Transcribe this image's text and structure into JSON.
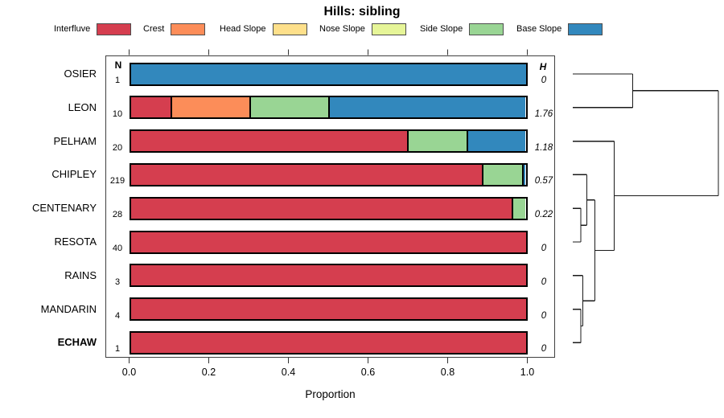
{
  "title": "Hills: sibling",
  "columns": {
    "n_header": "N",
    "h_header": "H"
  },
  "axis": {
    "label": "Proportion",
    "ticks": [
      "0.0",
      "0.2",
      "0.4",
      "0.6",
      "0.8",
      "1.0"
    ],
    "range": [
      0,
      1
    ]
  },
  "legend": [
    {
      "label": "Interfluve",
      "color": "#d53e4f"
    },
    {
      "label": "Crest",
      "color": "#fc8d59"
    },
    {
      "label": "Head Slope",
      "color": "#fee08b"
    },
    {
      "label": "Nose Slope",
      "color": "#e6f598"
    },
    {
      "label": "Side Slope",
      "color": "#99d594"
    },
    {
      "label": "Base Slope",
      "color": "#3288bd"
    }
  ],
  "rows": [
    {
      "label": "OSIER",
      "n": "1",
      "h": "0",
      "bold": false,
      "segments": [
        [
          "Base Slope",
          1.0
        ]
      ]
    },
    {
      "label": "LEON",
      "n": "10",
      "h": "1.76",
      "bold": false,
      "segments": [
        [
          "Interfluve",
          0.1
        ],
        [
          "Crest",
          0.2
        ],
        [
          "Side Slope",
          0.2
        ],
        [
          "Base Slope",
          0.5
        ]
      ]
    },
    {
      "label": "PELHAM",
      "n": "20",
      "h": "1.18",
      "bold": false,
      "segments": [
        [
          "Interfluve",
          0.7
        ],
        [
          "Side Slope",
          0.15
        ],
        [
          "Base Slope",
          0.15
        ]
      ]
    },
    {
      "label": "CHIPLEY",
      "n": "219",
      "h": "0.57",
      "bold": false,
      "segments": [
        [
          "Interfluve",
          0.89
        ],
        [
          "Side Slope",
          0.1
        ],
        [
          "Base Slope",
          0.01
        ]
      ]
    },
    {
      "label": "CENTENARY",
      "n": "28",
      "h": "0.22",
      "bold": false,
      "segments": [
        [
          "Interfluve",
          0.964
        ],
        [
          "Side Slope",
          0.036
        ]
      ]
    },
    {
      "label": "RESOTA",
      "n": "40",
      "h": "0",
      "bold": false,
      "segments": [
        [
          "Interfluve",
          1.0
        ]
      ]
    },
    {
      "label": "RAINS",
      "n": "3",
      "h": "0",
      "bold": false,
      "segments": [
        [
          "Interfluve",
          1.0
        ]
      ]
    },
    {
      "label": "MANDARIN",
      "n": "4",
      "h": "0",
      "bold": false,
      "segments": [
        [
          "Interfluve",
          1.0
        ]
      ]
    },
    {
      "label": "ECHAW",
      "n": "1",
      "h": "0",
      "bold": true,
      "segments": [
        [
          "Interfluve",
          1.0
        ]
      ]
    }
  ],
  "dendrogram": {
    "merges": [
      {
        "a": "L4",
        "b": "L5",
        "x": 722,
        "id": "M0"
      },
      {
        "a": "L3",
        "b": "M0",
        "x": 729.5,
        "id": "M1"
      },
      {
        "a": "L7",
        "b": "L8",
        "x": 722,
        "id": "M2"
      },
      {
        "a": "L6",
        "b": "M2",
        "x": 724.5,
        "id": "M3"
      },
      {
        "a": "M1",
        "b": "M3",
        "x": 739.5,
        "id": "M4"
      },
      {
        "a": "L2",
        "b": "M4",
        "x": 763.5,
        "id": "M5"
      },
      {
        "a": "L0",
        "b": "L1",
        "x": 786.5,
        "id": "M6"
      },
      {
        "a": "M6",
        "b": "M5",
        "x": 893,
        "id": "M7"
      }
    ]
  },
  "chart_data": {
    "type": "bar",
    "orientation": "horizontal",
    "stacked": true,
    "title": "Hills: sibling",
    "xlabel": "Proportion",
    "ylabel": "",
    "xlim": [
      0,
      1
    ],
    "categories": [
      "OSIER",
      "LEON",
      "PELHAM",
      "CHIPLEY",
      "CENTENARY",
      "RESOTA",
      "RAINS",
      "MANDARIN",
      "ECHAW"
    ],
    "n_counts": [
      1,
      10,
      20,
      219,
      28,
      40,
      3,
      4,
      1
    ],
    "entropy_H": [
      0,
      1.76,
      1.18,
      0.57,
      0.22,
      0,
      0,
      0,
      0
    ],
    "series": [
      {
        "name": "Interfluve",
        "color": "#d53e4f",
        "values": [
          0,
          0.1,
          0.7,
          0.89,
          0.964,
          1,
          1,
          1,
          1
        ]
      },
      {
        "name": "Crest",
        "color": "#fc8d59",
        "values": [
          0,
          0.2,
          0,
          0,
          0,
          0,
          0,
          0,
          0
        ]
      },
      {
        "name": "Head Slope",
        "color": "#fee08b",
        "values": [
          0,
          0,
          0,
          0,
          0,
          0,
          0,
          0,
          0
        ]
      },
      {
        "name": "Nose Slope",
        "color": "#e6f598",
        "values": [
          0,
          0,
          0,
          0,
          0,
          0,
          0,
          0,
          0
        ]
      },
      {
        "name": "Side Slope",
        "color": "#99d594",
        "values": [
          0,
          0.2,
          0.15,
          0.1,
          0.036,
          0,
          0,
          0,
          0
        ]
      },
      {
        "name": "Base Slope",
        "color": "#3288bd",
        "values": [
          1,
          0.5,
          0.15,
          0.01,
          0,
          0,
          0,
          0,
          0
        ]
      }
    ],
    "legend_position": "top",
    "grid": false,
    "right_annex": "dendrogram"
  }
}
